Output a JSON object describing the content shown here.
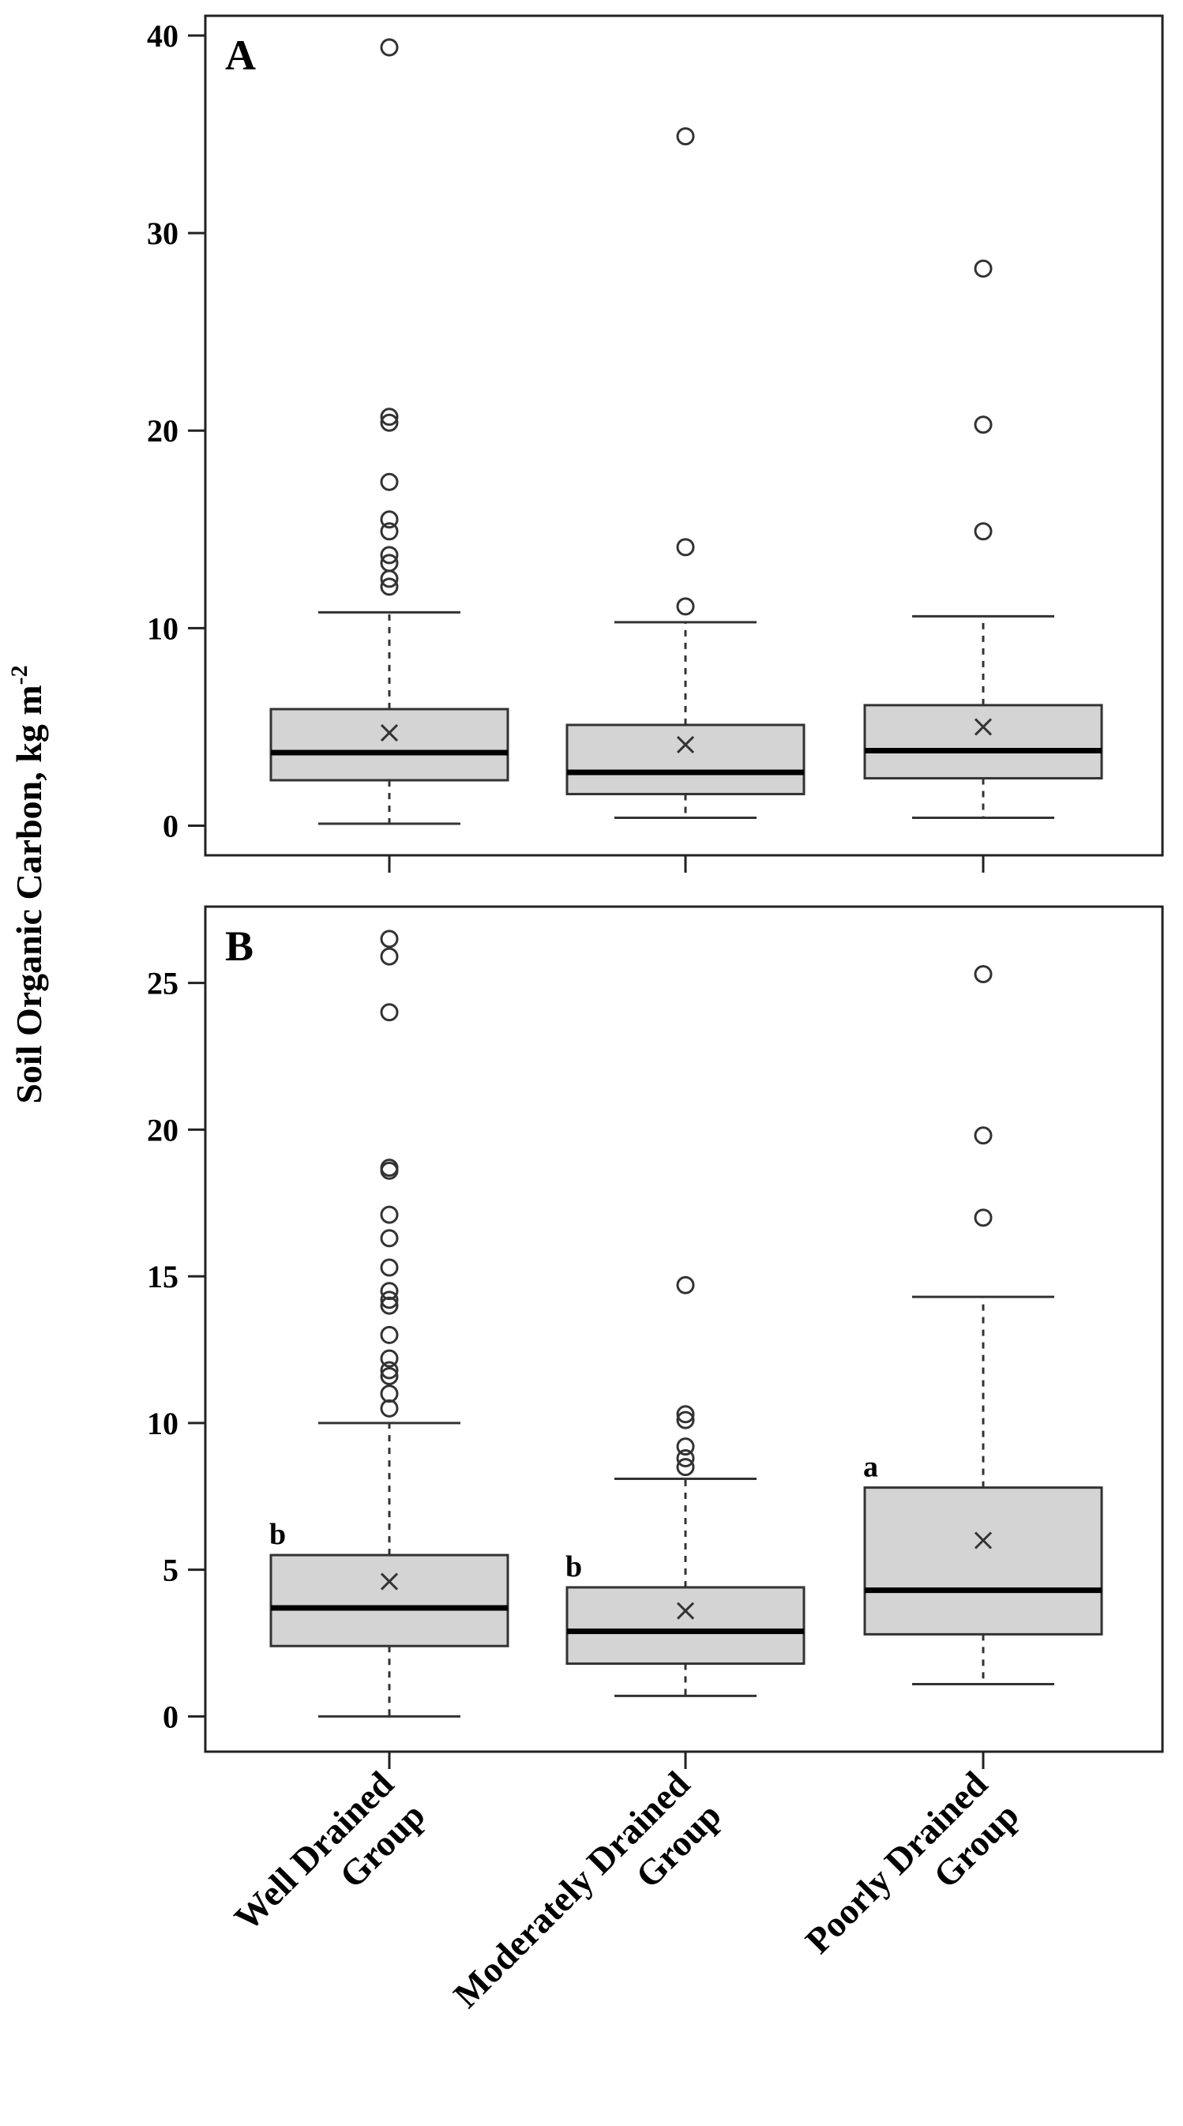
{
  "y_axis_title": "Soil Organic Carbon, kg m",
  "y_axis_title_superscript": "-2",
  "categories": [
    [
      "Well Drained",
      "Group"
    ],
    [
      "Moderately Drained",
      "Group"
    ],
    [
      "Poorly Drained",
      "Group"
    ]
  ],
  "chart_data": [
    {
      "type": "boxplot",
      "panel": "A",
      "ylim": [
        -1.5,
        41
      ],
      "yticks": [
        0,
        10,
        20,
        30,
        40
      ],
      "groups": [
        {
          "name": "Well Drained Group",
          "whisker_low": 0.1,
          "q1": 2.3,
          "median": 3.7,
          "q3": 5.9,
          "whisker_high": 10.8,
          "mean": 4.7,
          "outliers": [
            12.1,
            12.5,
            13.3,
            13.7,
            14.9,
            15.5,
            17.4,
            20.4,
            20.7,
            39.4
          ],
          "sig": ""
        },
        {
          "name": "Moderately Drained Group",
          "whisker_low": 0.4,
          "q1": 1.6,
          "median": 2.7,
          "q3": 5.1,
          "whisker_high": 10.3,
          "mean": 4.1,
          "outliers": [
            11.1,
            14.1,
            34.9
          ],
          "sig": ""
        },
        {
          "name": "Poorly Drained Group",
          "whisker_low": 0.4,
          "q1": 2.4,
          "median": 3.8,
          "q3": 6.1,
          "whisker_high": 10.6,
          "mean": 5.0,
          "outliers": [
            14.9,
            20.3,
            28.2
          ],
          "sig": ""
        }
      ]
    },
    {
      "type": "boxplot",
      "panel": "B",
      "ylim": [
        -1.2,
        27.6
      ],
      "yticks": [
        0,
        5,
        10,
        15,
        20,
        25
      ],
      "groups": [
        {
          "name": "Well Drained Group",
          "whisker_low": 0.0,
          "q1": 2.4,
          "median": 3.7,
          "q3": 5.5,
          "whisker_high": 10.0,
          "mean": 4.6,
          "outliers": [
            10.5,
            11.0,
            11.6,
            11.8,
            12.2,
            13.0,
            14.0,
            14.2,
            14.5,
            15.3,
            16.3,
            17.1,
            18.6,
            18.7,
            24.0,
            25.9,
            26.5
          ],
          "sig": "b"
        },
        {
          "name": "Moderately Drained Group",
          "whisker_low": 0.7,
          "q1": 1.8,
          "median": 2.9,
          "q3": 4.4,
          "whisker_high": 8.1,
          "mean": 3.6,
          "outliers": [
            8.5,
            8.8,
            9.2,
            10.1,
            10.3,
            14.7
          ],
          "sig": "b"
        },
        {
          "name": "Poorly Drained Group",
          "whisker_low": 1.1,
          "q1": 2.8,
          "median": 4.3,
          "q3": 7.8,
          "whisker_high": 14.3,
          "mean": 6.0,
          "outliers": [
            17.0,
            19.8,
            25.3
          ],
          "sig": "a"
        }
      ]
    }
  ]
}
